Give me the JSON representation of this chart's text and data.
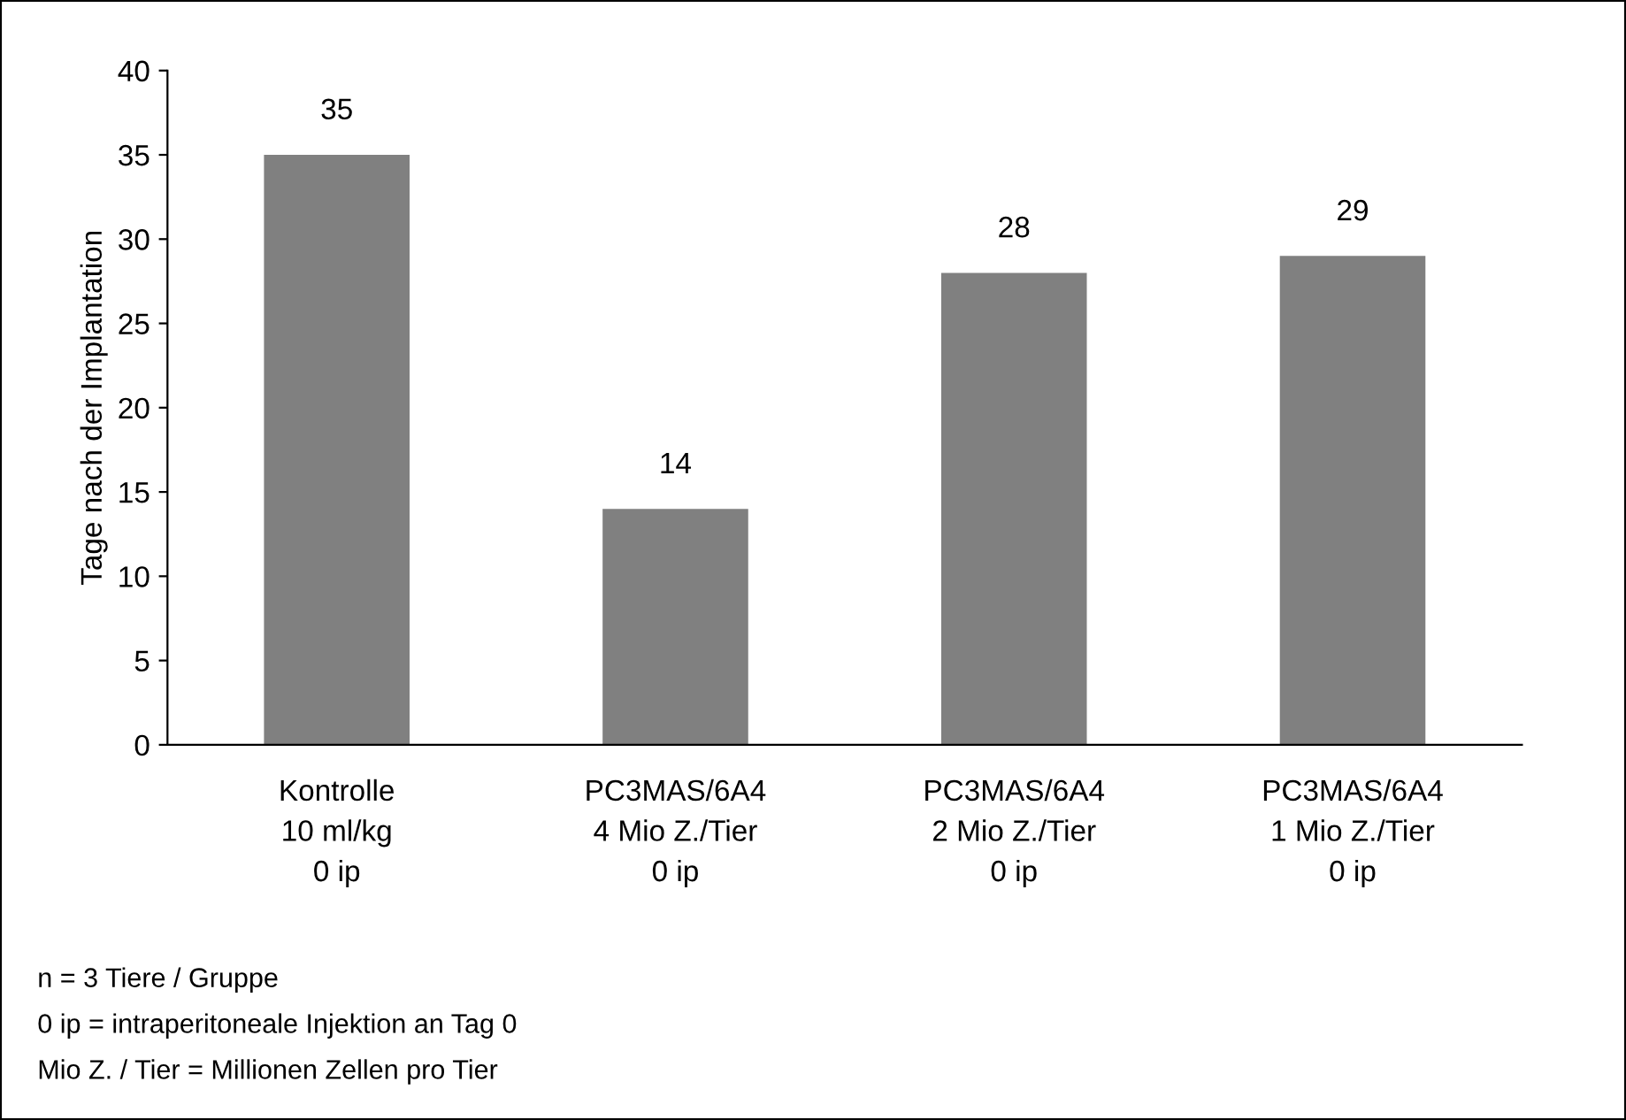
{
  "chart_data": {
    "type": "bar",
    "ylabel": "Tage nach der Implantation",
    "categories": [
      "Kontrolle\n10 ml/kg\n0 ip",
      "PC3MAS/6A4\n4 Mio Z./Tier\n0 ip",
      "PC3MAS/6A4\n2 Mio Z./Tier\n0 ip",
      "PC3MAS/6A4\n1 Mio Z./Tier\n0 ip"
    ],
    "values": [
      35,
      14,
      28,
      29
    ],
    "color": "#808080",
    "ylim": [
      0,
      40
    ],
    "yticks": [
      0,
      5,
      10,
      15,
      20,
      25,
      30,
      35,
      40
    ],
    "data_labels": true,
    "annotations": [
      "n = 3 Tiere / Gruppe",
      "0 ip = intraperitoneale Injektion an Tag 0",
      "Mio Z. / Tier = Millionen Zellen pro Tier"
    ]
  }
}
